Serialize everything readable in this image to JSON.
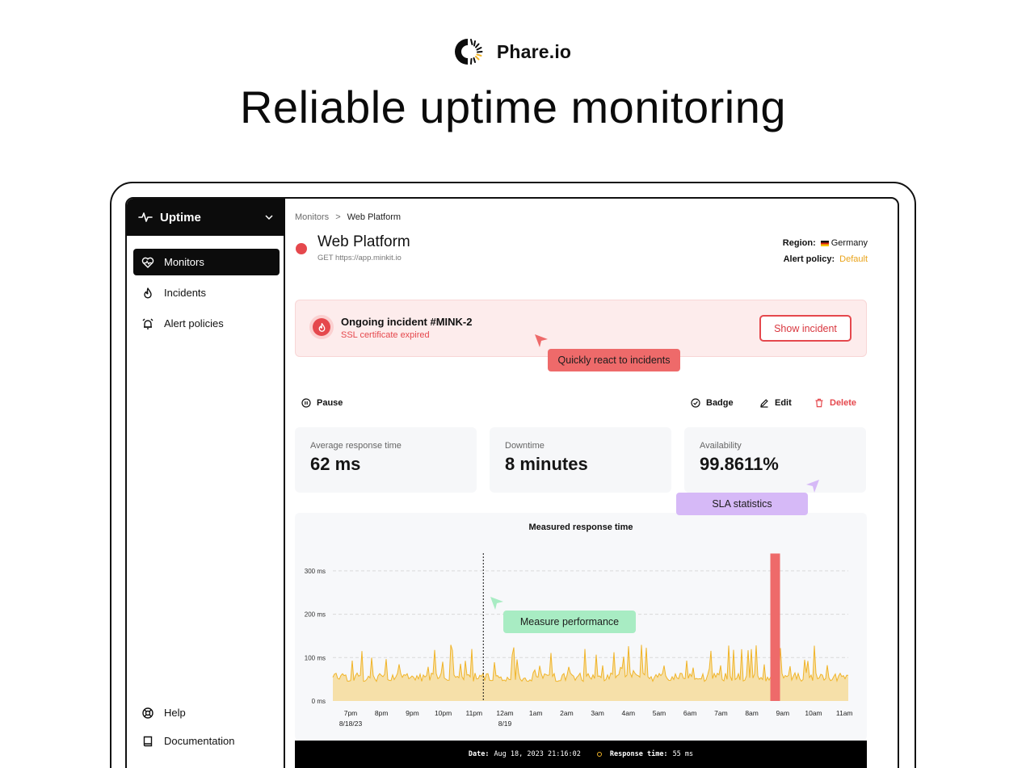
{
  "brand": {
    "name": "Phare.io"
  },
  "headline": "Reliable uptime monitoring",
  "workspace": {
    "label": "Uptime"
  },
  "nav": {
    "monitors": "Monitors",
    "incidents": "Incidents",
    "alert_policies": "Alert policies",
    "help": "Help",
    "documentation": "Documentation"
  },
  "breadcrumb": {
    "parent": "Monitors",
    "separator": ">",
    "current": "Web Platform"
  },
  "monitor": {
    "name": "Web Platform",
    "request": "GET https://app.minkit.io",
    "region_label": "Region:",
    "region_value": "Germany",
    "policy_label": "Alert policy:",
    "policy_value": "Default"
  },
  "incident": {
    "title": "Ongoing incident #MINK-2",
    "subtitle": "SSL certificate expired",
    "button": "Show incident"
  },
  "callouts": {
    "incidents": "Quickly react to incidents",
    "sla": "SLA statistics",
    "performance": "Measure performance"
  },
  "actions": {
    "pause": "Pause",
    "badge": "Badge",
    "edit": "Edit",
    "delete": "Delete"
  },
  "stats": [
    {
      "label": "Average response time",
      "value": "62 ms"
    },
    {
      "label": "Downtime",
      "value": "8 minutes"
    },
    {
      "label": "Availability",
      "value": "99.8611%"
    }
  ],
  "chart_data": {
    "type": "area",
    "title": "Measured response time",
    "y_ticks": [
      "300 ms",
      "200 ms",
      "100 ms",
      "0 ms"
    ],
    "ylim": [
      0,
      340
    ],
    "x_ticks": [
      {
        "label": "7pm",
        "sub": "8/18/23"
      },
      {
        "label": "8pm",
        "sub": ""
      },
      {
        "label": "9pm",
        "sub": ""
      },
      {
        "label": "10pm",
        "sub": ""
      },
      {
        "label": "11pm",
        "sub": ""
      },
      {
        "label": "12am",
        "sub": "8/19"
      },
      {
        "label": "1am",
        "sub": ""
      },
      {
        "label": "2am",
        "sub": ""
      },
      {
        "label": "3am",
        "sub": ""
      },
      {
        "label": "4am",
        "sub": ""
      },
      {
        "label": "5am",
        "sub": ""
      },
      {
        "label": "6am",
        "sub": ""
      },
      {
        "label": "7am",
        "sub": ""
      },
      {
        "label": "8am",
        "sub": ""
      },
      {
        "label": "9am",
        "sub": ""
      },
      {
        "label": "10am",
        "sub": ""
      },
      {
        "label": "11am",
        "sub": ""
      }
    ],
    "baseline_ms": 55,
    "peak_ms": 130,
    "downtime_hours_after_start": 13.6,
    "downtime_peak_ms": 340,
    "cursor_hours_after_start": 4.3,
    "grid": true,
    "series_color": "#f0b429",
    "downtime_color": "#ee6a6a"
  },
  "tooltip": {
    "date_label": "Date:",
    "date_value": "Aug 18, 2023 21:16:02",
    "rt_label": "Response time:",
    "rt_value": "55 ms"
  },
  "colors": {
    "danger": "#e5484d",
    "accent": "#f0b429",
    "callout_red": "#ee6a6a",
    "callout_purple": "#d6b9f7",
    "callout_green": "#a8ecc3"
  }
}
